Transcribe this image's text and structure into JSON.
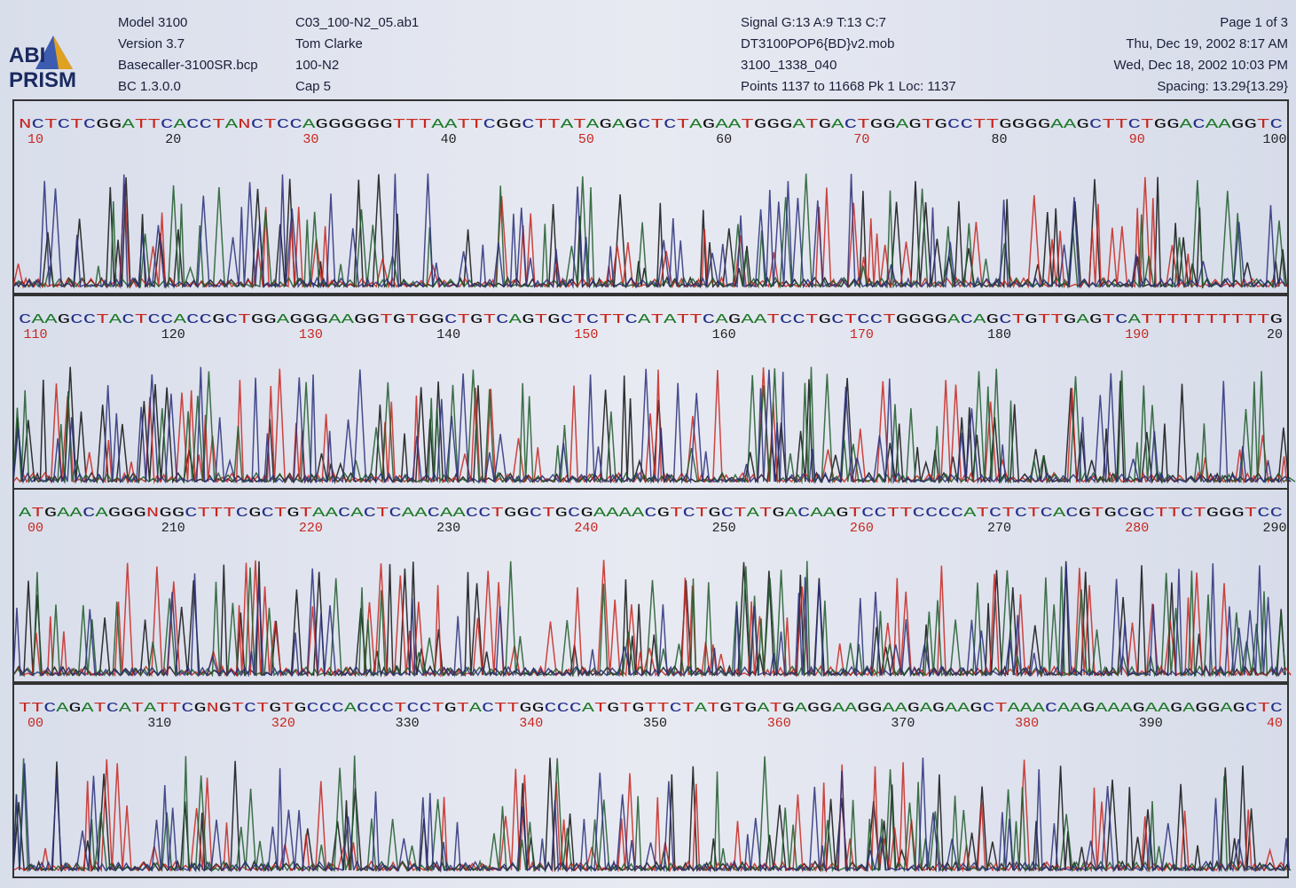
{
  "header": {
    "logo": [
      "ABI",
      "PRISM"
    ],
    "run": [
      "Model 3100",
      "Version 3.7",
      "Basecaller-3100SR.bcp",
      "BC 1.3.0.0"
    ],
    "sample": [
      "C03_100-N2_05.ab1",
      "Tom Clarke",
      "100-N2",
      "Cap 5"
    ],
    "signal": [
      "Signal G:13 A:9 T:13 C:7",
      "DT3100POP6{BD}v2.mob",
      "3100_1338_040",
      "Points 1137 to 11668   Pk 1 Loc: 1137"
    ],
    "page": [
      "Page 1 of 3",
      "Thu, Dec 19, 2002  8:17 AM",
      "Wed, Dec 18, 2002  10:03 PM",
      "Spacing: 13.29{13.29}"
    ]
  },
  "panels": [
    {
      "sequence": "NCTCTCGGATTCACCTANCTCCAGGGGGGTTTAATTCGGCTTATAGAGCTCTAGAATGGGATGACTGGAGTGCCTTGGGGAAGCTTCTGGACAAGGTC",
      "positions": [
        "10",
        "20",
        "30",
        "40",
        "50",
        "60",
        "70",
        "80",
        "90",
        "100"
      ]
    },
    {
      "sequence": "CAAGCCTACTCCACCGCTGGAGGGAAGGTGTGGCTGTCAGTGCTCTTCATATTCAGAATCCTGCTCCTGGGGACAGCTGTTGAGTCATTTTTTTTTTG",
      "positions": [
        "110",
        "120",
        "130",
        "140",
        "150",
        "160",
        "170",
        "180",
        "190",
        "20"
      ]
    },
    {
      "sequence": "ATGAACAGGGNGGCTTTCGCTGTAACACTCAACAACCTGGCTGCGAAAACGTCTGCTATGACAAGTCCTTCCCCATCTCTCACGTGCGCTTCTGGGTCC",
      "positions": [
        "00",
        "210",
        "220",
        "230",
        "240",
        "250",
        "260",
        "270",
        "280",
        "290"
      ]
    },
    {
      "sequence": "TTCAGATCATATTCGNGTCTGTGCCCACCCTCCTGTACTTGGCCCATGTGTTCTATGTGATGAGGAAGGAAGAGAAGCTAAACAAGAAAGAAGAGGAGCTC",
      "positions": [
        "00",
        "310",
        "320",
        "330",
        "340",
        "350",
        "360",
        "370",
        "380",
        "390",
        "40"
      ]
    }
  ]
}
